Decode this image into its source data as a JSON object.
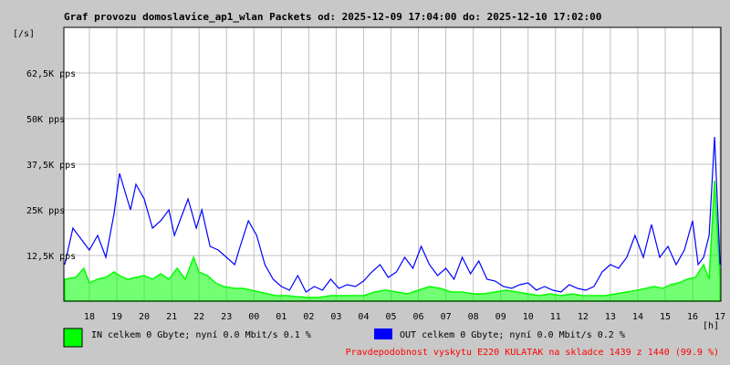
{
  "chart_data": {
    "type": "area",
    "title": "Graf provozu domoslavice_ap1_wlan Packets od: 2025-12-09 17:04:00 do: 2025-12-10 17:02:00",
    "ylabel": "[/s]",
    "xlabel": "[h]",
    "ylim": [
      0,
      75000
    ],
    "grid": true,
    "y_ticks": [
      "12,5K pps",
      "25K pps",
      "37,5K pps",
      "50K pps",
      "62,5K pps"
    ],
    "y_tick_values": [
      12500,
      25000,
      37500,
      50000,
      62500
    ],
    "x_ticks": [
      "18",
      "19",
      "20",
      "21",
      "22",
      "23",
      "00",
      "01",
      "02",
      "03",
      "04",
      "05",
      "06",
      "07",
      "08",
      "09",
      "10",
      "11",
      "12",
      "13",
      "14",
      "15",
      "16",
      "17"
    ],
    "x_range_hours": [
      17.07,
      41.03
    ],
    "series": [
      {
        "name": "IN",
        "role": "in",
        "style": "filled-area",
        "color": "#00ff00",
        "x": [
          17.1,
          17.5,
          17.8,
          18.0,
          18.3,
          18.6,
          18.9,
          19.1,
          19.4,
          19.7,
          20.0,
          20.3,
          20.6,
          20.9,
          21.2,
          21.5,
          21.8,
          22.0,
          22.3,
          22.6,
          22.9,
          23.3,
          23.6,
          23.9,
          24.2,
          24.5,
          24.8,
          25.2,
          25.6,
          26.0,
          26.4,
          26.8,
          27.2,
          27.6,
          28.0,
          28.4,
          28.8,
          29.2,
          29.6,
          30.0,
          30.4,
          30.8,
          31.2,
          31.6,
          32.0,
          32.4,
          32.8,
          33.2,
          33.6,
          34.0,
          34.4,
          34.8,
          35.2,
          35.6,
          36.0,
          36.4,
          36.8,
          37.2,
          37.6,
          38.0,
          38.3,
          38.6,
          38.9,
          39.2,
          39.5,
          39.8,
          40.1,
          40.4,
          40.6,
          40.8,
          41.0
        ],
        "values": [
          6000,
          6500,
          9000,
          5000,
          6000,
          6500,
          8000,
          7000,
          6000,
          6500,
          7000,
          6000,
          7500,
          6000,
          9000,
          6000,
          12000,
          8000,
          7000,
          5000,
          4000,
          3500,
          3500,
          3000,
          2500,
          2000,
          1500,
          1500,
          1200,
          1000,
          1000,
          1500,
          1500,
          1500,
          1500,
          2500,
          3000,
          2500,
          2000,
          3000,
          4000,
          3500,
          2500,
          2500,
          2000,
          2000,
          2500,
          3000,
          2500,
          2000,
          1500,
          2000,
          1500,
          2000,
          1500,
          1500,
          1500,
          2000,
          2500,
          3000,
          3500,
          4000,
          3500,
          4500,
          5000,
          6000,
          6500,
          10000,
          6000,
          33000,
          6000
        ],
        "values_note": "IN (green) 15-minute approx samples"
      },
      {
        "name": "OUT",
        "role": "out",
        "style": "line",
        "color": "#0000ff",
        "x": [
          17.1,
          17.4,
          17.7,
          18.0,
          18.3,
          18.6,
          18.9,
          19.1,
          19.3,
          19.5,
          19.7,
          20.0,
          20.3,
          20.6,
          20.9,
          21.1,
          21.3,
          21.6,
          21.9,
          22.1,
          22.4,
          22.7,
          23.0,
          23.3,
          23.5,
          23.8,
          24.1,
          24.4,
          24.7,
          25.0,
          25.3,
          25.6,
          25.9,
          26.2,
          26.5,
          26.8,
          27.1,
          27.4,
          27.7,
          28.0,
          28.3,
          28.6,
          28.9,
          29.2,
          29.5,
          29.8,
          30.1,
          30.4,
          30.7,
          31.0,
          31.3,
          31.6,
          31.9,
          32.2,
          32.5,
          32.8,
          33.1,
          33.4,
          33.7,
          34.0,
          34.3,
          34.6,
          34.9,
          35.2,
          35.5,
          35.8,
          36.1,
          36.4,
          36.7,
          37.0,
          37.3,
          37.6,
          37.9,
          38.2,
          38.5,
          38.8,
          39.1,
          39.4,
          39.7,
          40.0,
          40.2,
          40.4,
          40.6,
          40.8,
          41.0
        ],
        "values": [
          10000,
          20000,
          17000,
          14000,
          18000,
          12000,
          24000,
          35000,
          30000,
          25000,
          32000,
          28000,
          20000,
          22000,
          25000,
          18000,
          22000,
          28000,
          20000,
          25000,
          15000,
          14000,
          12000,
          10000,
          15000,
          22000,
          18000,
          10000,
          6000,
          4000,
          3000,
          7000,
          2500,
          4000,
          3000,
          6000,
          3500,
          4500,
          4000,
          5500,
          8000,
          10000,
          6500,
          8000,
          12000,
          9000,
          15000,
          10000,
          7000,
          9000,
          6000,
          12000,
          7500,
          11000,
          6000,
          5500,
          4000,
          3500,
          4500,
          5000,
          3000,
          4000,
          3000,
          2500,
          4500,
          3500,
          3000,
          4000,
          8000,
          10000,
          9000,
          12000,
          18000,
          12000,
          21000,
          12000,
          15000,
          10000,
          14000,
          22000,
          10000,
          12000,
          18000,
          45000,
          10000
        ],
        "values_note": "OUT (blue) approx samples"
      }
    ],
    "legend_placement": "bottom-left"
  },
  "legend": {
    "in_text": "IN celkem 0 Gbyte; nyní   0.0 Mbit/s 0.1 %",
    "out_text": "OUT celkem 0 Gbyte; nyní   0.0 Mbit/s 0.2 %",
    "in_color": "#00ff00",
    "out_color": "#0000ff"
  },
  "footer": {
    "text": "Pravdepodobnost vyskytu E220 KULATAK na skladce 1439 z 1440 (99.9 %)",
    "color": "#ff0000"
  },
  "colors": {
    "background": "#c8c8c8",
    "plot_background": "#ffffff",
    "grid": "#c0c0c0"
  }
}
